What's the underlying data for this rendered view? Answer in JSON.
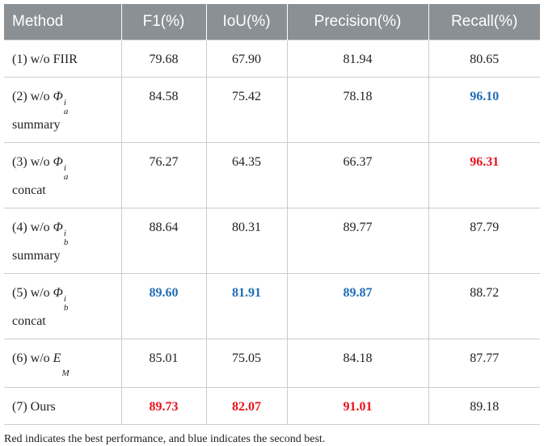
{
  "table": {
    "header": [
      "Method",
      "F1(%)",
      "IoU(%)",
      "Precision(%)",
      "Recall(%)"
    ],
    "rows": [
      {
        "method": {
          "prefix": "(1) w/o FIIR"
        },
        "cells": [
          "79.68",
          "67.90",
          "81.94",
          "80.65"
        ]
      },
      {
        "method": {
          "prefix": "(2) w/o ",
          "symbol": "Φ",
          "sub": "a",
          "sup": "i",
          "suffix": "summary"
        },
        "cells": [
          "84.58",
          "75.42",
          "78.18",
          {
            "text": "96.10",
            "color": "#1f6db5"
          }
        ]
      },
      {
        "method": {
          "prefix": "(3) w/o ",
          "symbol": "Φ",
          "sub": "a",
          "sup": "i",
          "suffix": "concat"
        },
        "cells": [
          "76.27",
          "64.35",
          "66.37",
          {
            "text": "96.31",
            "color": "#e8141c"
          }
        ]
      },
      {
        "method": {
          "prefix": "(4) w/o ",
          "symbol": "Φ",
          "sub": "b",
          "sup": "i",
          "suffix": "summary"
        },
        "cells": [
          "88.64",
          "80.31",
          "89.77",
          "87.79"
        ]
      },
      {
        "method": {
          "prefix": "(5) w/o ",
          "symbol": "Φ",
          "sub": "b",
          "sup": "i",
          "suffix": "concat"
        },
        "cells": [
          {
            "text": "89.60",
            "color": "#1f6db5"
          },
          {
            "text": "81.91",
            "color": "#1f6db5"
          },
          {
            "text": "89.87",
            "color": "#1f6db5"
          },
          "88.72"
        ]
      },
      {
        "method": {
          "prefix": "(6) w/o ",
          "symbol": "E",
          "sub": "M"
        },
        "cells": [
          "85.01",
          "75.05",
          "84.18",
          "87.77"
        ]
      },
      {
        "method": {
          "prefix": "(7) Ours"
        },
        "cells": [
          {
            "text": "89.73",
            "color": "#e8141c"
          },
          {
            "text": "82.07",
            "color": "#e8141c"
          },
          {
            "text": "91.01",
            "color": "#e8141c"
          },
          "89.18"
        ]
      }
    ],
    "note": "Red indicates the best performance, and blue indicates the second best."
  }
}
